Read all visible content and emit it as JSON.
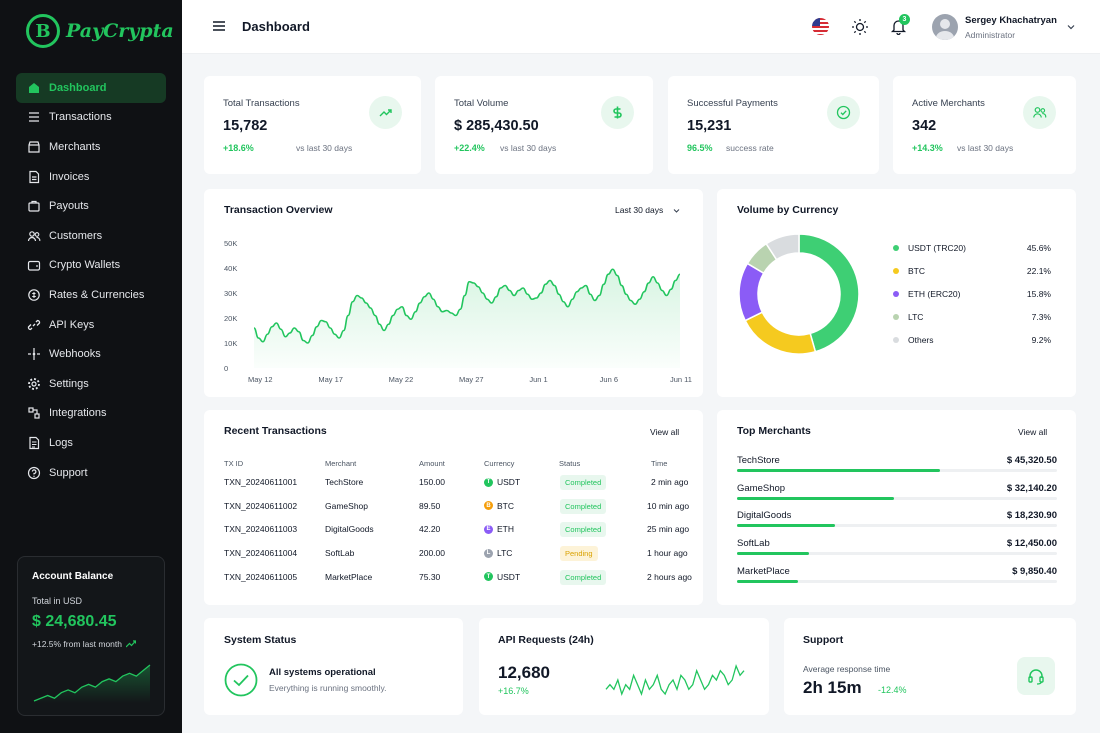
{
  "brand": {
    "name": "PayCrypta",
    "mark": "B"
  },
  "sidebar": {
    "items": [
      {
        "label": "Dashboard",
        "icon": "home-icon",
        "active": true
      },
      {
        "label": "Transactions",
        "icon": "list-icon"
      },
      {
        "label": "Merchants",
        "icon": "store-icon"
      },
      {
        "label": "Invoices",
        "icon": "document-icon"
      },
      {
        "label": "Payouts",
        "icon": "briefcase-icon"
      },
      {
        "label": "Customers",
        "icon": "users-icon"
      },
      {
        "label": "Crypto Wallets",
        "icon": "wallet-icon"
      },
      {
        "label": "Rates & Currencies",
        "icon": "coins-icon"
      },
      {
        "label": "API Keys",
        "icon": "link-icon"
      },
      {
        "label": "Webhooks",
        "icon": "webhook-icon"
      },
      {
        "label": "Settings",
        "icon": "gear-icon"
      },
      {
        "label": "Integrations",
        "icon": "plug-icon"
      },
      {
        "label": "Logs",
        "icon": "logs-icon"
      },
      {
        "label": "Support",
        "icon": "help-icon"
      }
    ],
    "balance": {
      "title": "Account Balance",
      "sub": "Total in USD",
      "amount": "$ 24,680.45",
      "change": "+12.5% from last month"
    }
  },
  "header": {
    "title": "Dashboard",
    "notification_count": "3",
    "user_name": "Sergey Khachatryan",
    "user_role": "Administrator"
  },
  "stats": [
    {
      "label": "Total Transactions",
      "value": "15,782",
      "change": "+18.6%",
      "note": "vs last 30 days",
      "icon": "trending-up-icon"
    },
    {
      "label": "Total Volume",
      "value": "$ 285,430.50",
      "change": "+22.4%",
      "note": "vs last 30 days",
      "icon": "dollar-icon"
    },
    {
      "label": "Successful Payments",
      "value": "15,231",
      "change": "96.5%",
      "note": "success rate",
      "icon": "check-circle-icon"
    },
    {
      "label": "Active Merchants",
      "value": "342",
      "change": "+14.3%",
      "note": "vs last 30 days",
      "icon": "users-icon"
    }
  ],
  "overview": {
    "title": "Transaction Overview",
    "range": "Last 30 days"
  },
  "chart_data": [
    {
      "type": "area",
      "title": "Transaction Overview",
      "x_ticks": [
        "May 12",
        "May 17",
        "May 22",
        "May 27",
        "Jun 1",
        "Jun 6",
        "Jun 11"
      ],
      "y_ticks": [
        "50K",
        "40K",
        "30K",
        "20K",
        "10K",
        "0"
      ],
      "ylim": [
        0,
        50000
      ],
      "values": [
        16000,
        12000,
        10500,
        13500,
        16500,
        18000,
        15500,
        12500,
        14000,
        16000,
        14500,
        11000,
        10000,
        13000,
        16500,
        19000,
        18500,
        16000,
        13500,
        12000,
        15000,
        21000,
        26500,
        29000,
        28000,
        26000,
        24000,
        21000,
        17500,
        15000,
        17500,
        21000,
        23500,
        24500,
        21000,
        19500,
        22500,
        26000,
        28500,
        30000,
        27500,
        24500,
        22500,
        23000,
        22000,
        21000,
        23500,
        29000,
        34500,
        34000,
        32500,
        30000,
        27500,
        26000,
        28500,
        32000,
        33000,
        31000,
        29000,
        31000,
        32000,
        29500,
        27500,
        28000,
        30000,
        33500,
        35000,
        33000,
        29500,
        26500,
        24500,
        27500,
        30500,
        32000,
        33000,
        29500,
        27000,
        29000,
        33500,
        37500,
        39500,
        37000,
        33000,
        29500,
        27000,
        25500,
        27500,
        30500,
        34000,
        36500,
        34000,
        31000,
        29000,
        31500,
        35000,
        37500
      ]
    },
    {
      "type": "pie",
      "title": "Volume by Currency",
      "series": [
        {
          "name": "USDT (TRC20)",
          "pct": "45.6%",
          "value": 45.6,
          "color": "#3ecf74"
        },
        {
          "name": "BTC",
          "pct": "22.1%",
          "value": 22.1,
          "color": "#f5ca1f"
        },
        {
          "name": "ETH (ERC20)",
          "pct": "15.8%",
          "value": 15.8,
          "color": "#8b5cf6"
        },
        {
          "name": "LTC",
          "pct": "7.3%",
          "value": 7.3,
          "color": "#b9d3b0"
        },
        {
          "name": "Others",
          "pct": "9.2%",
          "value": 9.2,
          "color": "#d9dcdf"
        }
      ]
    },
    {
      "type": "line",
      "title": "API Requests (24h)",
      "values": [
        5,
        6,
        5,
        7,
        4,
        6,
        5,
        8,
        6,
        4,
        7,
        5,
        6,
        8,
        5,
        4,
        6,
        7,
        5,
        8,
        7,
        5,
        6,
        9,
        7,
        5,
        6,
        8,
        7,
        9,
        8,
        6,
        7,
        10,
        8,
        9
      ]
    },
    {
      "type": "line",
      "title": "Account Balance",
      "values": [
        2,
        3,
        4,
        3,
        5,
        6,
        5,
        7,
        8,
        7,
        9,
        10,
        9,
        11,
        12,
        11,
        13,
        15
      ]
    }
  ],
  "currency": {
    "title": "Volume by Currency"
  },
  "recent": {
    "title": "Recent Transactions",
    "view_all": "View all",
    "headers": [
      "TX ID",
      "Merchant",
      "Amount",
      "Currency",
      "Status",
      "Time"
    ],
    "rows": [
      {
        "id": "TXN_20240611001",
        "merchant": "TechStore",
        "amount": "150.00",
        "currency": "USDT",
        "coin": "T",
        "coin_color": "#22c55e",
        "status": "Completed",
        "time": "2 min ago"
      },
      {
        "id": "TXN_20240611002",
        "merchant": "GameShop",
        "amount": "89.50",
        "currency": "BTC",
        "coin": "B",
        "coin_color": "#f59e0b",
        "status": "Completed",
        "time": "10 min ago"
      },
      {
        "id": "TXN_20240611003",
        "merchant": "DigitalGoods",
        "amount": "42.20",
        "currency": "ETH",
        "coin": "E",
        "coin_color": "#8b5cf6",
        "status": "Completed",
        "time": "25 min ago"
      },
      {
        "id": "TXN_20240611004",
        "merchant": "SoftLab",
        "amount": "200.00",
        "currency": "LTC",
        "coin": "L",
        "coin_color": "#9ca3af",
        "status": "Pending",
        "time": "1 hour ago"
      },
      {
        "id": "TXN_20240611005",
        "merchant": "MarketPlace",
        "amount": "75.30",
        "currency": "USDT",
        "coin": "T",
        "coin_color": "#22c55e",
        "status": "Completed",
        "time": "2 hours ago"
      }
    ]
  },
  "merchants": {
    "title": "Top Merchants",
    "view_all": "View all",
    "rows": [
      {
        "name": "TechStore",
        "amount": "$ 45,320.50",
        "share": 0.635
      },
      {
        "name": "GameShop",
        "amount": "$ 32,140.20",
        "share": 0.49
      },
      {
        "name": "DigitalGoods",
        "amount": "$ 18,230.90",
        "share": 0.305
      },
      {
        "name": "SoftLab",
        "amount": "$ 12,450.00",
        "share": 0.225
      },
      {
        "name": "MarketPlace",
        "amount": "$ 9,850.40",
        "share": 0.19
      }
    ]
  },
  "system": {
    "title": "System Status",
    "status": "All systems operational",
    "detail": "Everything is running smoothly."
  },
  "api": {
    "title": "API Requests (24h)",
    "value": "12,680",
    "change": "+16.7%"
  },
  "support": {
    "title": "Support",
    "label": "Average response time",
    "value": "2h 15m",
    "change": "-12.4%"
  }
}
